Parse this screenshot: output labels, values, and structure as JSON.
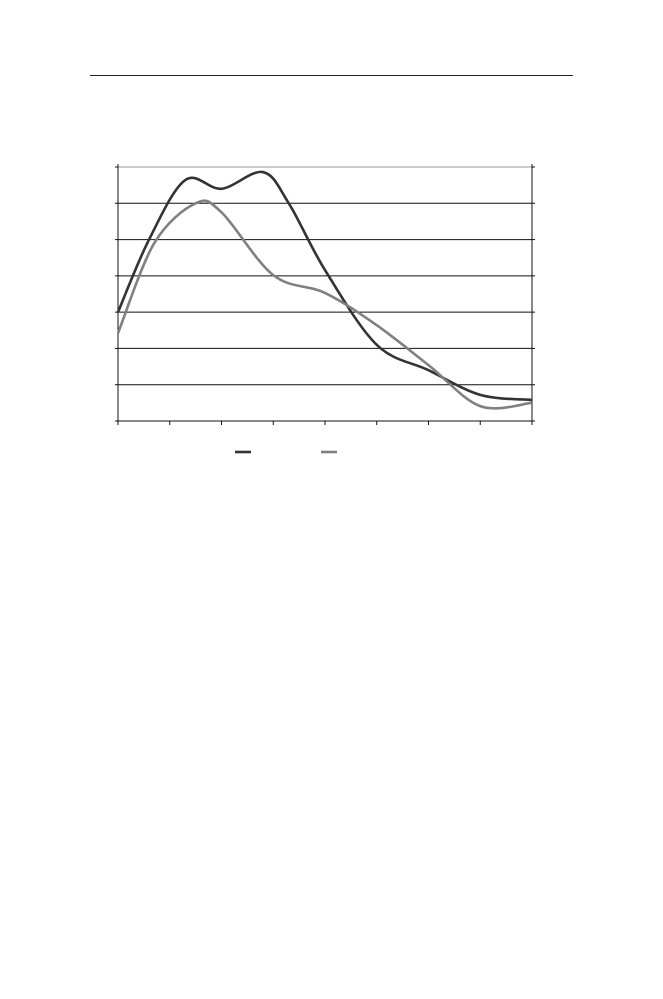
{
  "chart_data": {
    "type": "line",
    "title": "",
    "xlabel": "",
    "ylabel": "",
    "xlim": [
      0,
      8
    ],
    "ylim": [
      0,
      7
    ],
    "grid": true,
    "legend": "bottom",
    "series": [
      {
        "color": "#333333",
        "smooth": true,
        "points": [
          [
            0,
            3.0
          ],
          [
            0.6,
            5.0
          ],
          [
            1.3,
            6.64
          ],
          [
            2.0,
            6.4
          ],
          [
            2.8,
            6.86
          ],
          [
            3.3,
            6.0
          ],
          [
            4.0,
            4.16
          ],
          [
            5.0,
            2.1
          ],
          [
            6.0,
            1.4
          ],
          [
            7.0,
            0.72
          ],
          [
            8.0,
            0.58
          ]
        ]
      },
      {
        "color": "#808080",
        "smooth": true,
        "points": [
          [
            0,
            2.42
          ],
          [
            0.7,
            4.9
          ],
          [
            1.5,
            6.0
          ],
          [
            2.0,
            5.75
          ],
          [
            3.0,
            4.02
          ],
          [
            4.0,
            3.53
          ],
          [
            5.0,
            2.64
          ],
          [
            6.0,
            1.54
          ],
          [
            7.0,
            0.41
          ],
          [
            8.0,
            0.5
          ]
        ]
      }
    ]
  }
}
